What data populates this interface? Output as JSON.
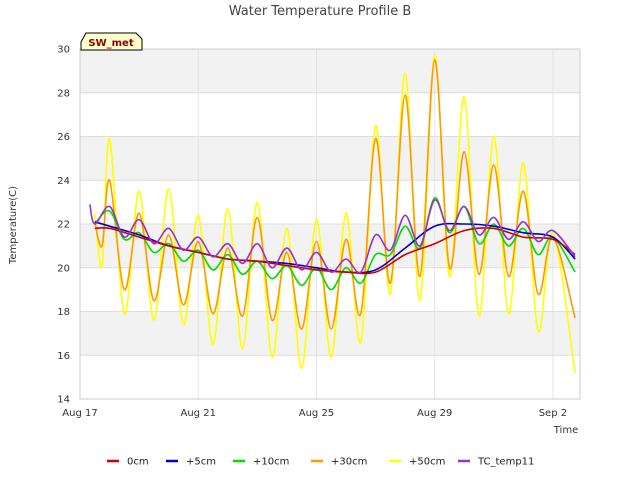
{
  "chart_data": {
    "type": "line",
    "title": "Water Temperature Profile B",
    "xlabel": "Time",
    "ylabel": "Temperature(C)",
    "ylim": [
      14,
      30
    ],
    "xlim": [
      "2023-08-17",
      "2023-09-02T22:00"
    ],
    "yticks": [
      14,
      16,
      18,
      20,
      22,
      24,
      26,
      28,
      30
    ],
    "xticks": [
      {
        "value": "2023-08-17",
        "label": "Aug 17"
      },
      {
        "value": "2023-08-21",
        "label": "Aug 21"
      },
      {
        "value": "2023-08-25",
        "label": "Aug 25"
      },
      {
        "value": "2023-08-29",
        "label": "Aug 29"
      },
      {
        "value": "2023-09-02",
        "label": "Sep 2"
      }
    ],
    "grid": true,
    "legend_position": "bottom",
    "badge": "SW_met",
    "series": [
      {
        "name": "0cm",
        "color": "#cc0000",
        "x": [
          "2023-08-17T12:00",
          "2023-08-18",
          "2023-08-19",
          "2023-08-20",
          "2023-08-21",
          "2023-08-22",
          "2023-08-23",
          "2023-08-24",
          "2023-08-25",
          "2023-08-26",
          "2023-08-27",
          "2023-08-28",
          "2023-08-29",
          "2023-08-30",
          "2023-08-31",
          "2023-09-01",
          "2023-09-02",
          "2023-09-02T18:00"
        ],
        "y": [
          21.8,
          21.8,
          21.4,
          21.0,
          20.7,
          20.4,
          20.3,
          20.1,
          19.9,
          19.8,
          19.8,
          20.6,
          21.1,
          21.7,
          21.8,
          21.4,
          21.3,
          20.6
        ]
      },
      {
        "name": "+5cm",
        "color": "#0000cc",
        "x": [
          "2023-08-17T12:00",
          "2023-08-18",
          "2023-08-19",
          "2023-08-20",
          "2023-08-21",
          "2023-08-22",
          "2023-08-23",
          "2023-08-24",
          "2023-08-25",
          "2023-08-26",
          "2023-08-27",
          "2023-08-28",
          "2023-08-29",
          "2023-08-30",
          "2023-08-31",
          "2023-09-01",
          "2023-09-02",
          "2023-09-02T18:00"
        ],
        "y": [
          22.1,
          21.9,
          21.5,
          21.0,
          20.7,
          20.4,
          20.3,
          20.2,
          20.0,
          19.8,
          19.9,
          20.9,
          21.9,
          22.0,
          21.9,
          21.6,
          21.4,
          20.4
        ]
      },
      {
        "name": "+10cm",
        "color": "#00dd00",
        "x": [
          "2023-08-17T12:00",
          "2023-08-18",
          "2023-08-18T12:00",
          "2023-08-19",
          "2023-08-19T12:00",
          "2023-08-20",
          "2023-08-20T12:00",
          "2023-08-21",
          "2023-08-21T12:00",
          "2023-08-22",
          "2023-08-22T12:00",
          "2023-08-23",
          "2023-08-23T12:00",
          "2023-08-24",
          "2023-08-24T12:00",
          "2023-08-25",
          "2023-08-25T12:00",
          "2023-08-26",
          "2023-08-26T12:00",
          "2023-08-27",
          "2023-08-27T12:00",
          "2023-08-28",
          "2023-08-28T12:00",
          "2023-08-29",
          "2023-08-29T12:00",
          "2023-08-30",
          "2023-08-30T12:00",
          "2023-08-31",
          "2023-08-31T12:00",
          "2023-09-01",
          "2023-09-01T12:00",
          "2023-09-02",
          "2023-09-02T18:00"
        ],
        "y": [
          22.0,
          22.6,
          21.3,
          21.6,
          20.7,
          21.1,
          20.3,
          20.8,
          19.9,
          20.6,
          19.7,
          20.3,
          19.5,
          20.1,
          19.2,
          20.0,
          19.0,
          20.0,
          19.3,
          20.6,
          20.6,
          21.9,
          20.9,
          23.2,
          21.6,
          22.8,
          21.1,
          22.0,
          21.0,
          21.8,
          20.6,
          21.4,
          19.8
        ]
      },
      {
        "name": "+30cm",
        "color": "#ff9900",
        "x": [
          "2023-08-17T12:00",
          "2023-08-17T18:00",
          "2023-08-18",
          "2023-08-18T12:00",
          "2023-08-19",
          "2023-08-19T12:00",
          "2023-08-20",
          "2023-08-20T12:00",
          "2023-08-21",
          "2023-08-21T12:00",
          "2023-08-22",
          "2023-08-22T12:00",
          "2023-08-23",
          "2023-08-23T12:00",
          "2023-08-24",
          "2023-08-24T12:00",
          "2023-08-25",
          "2023-08-25T12:00",
          "2023-08-26",
          "2023-08-26T12:00",
          "2023-08-27",
          "2023-08-27T12:00",
          "2023-08-28",
          "2023-08-28T12:00",
          "2023-08-29",
          "2023-08-29T12:00",
          "2023-08-30",
          "2023-08-30T12:00",
          "2023-08-31",
          "2023-08-31T12:00",
          "2023-09-01",
          "2023-09-01T12:00",
          "2023-09-02",
          "2023-09-02T18:00"
        ],
        "y": [
          22.1,
          21.0,
          24.0,
          19.0,
          22.5,
          18.5,
          21.5,
          18.3,
          21.2,
          17.9,
          20.9,
          17.8,
          22.3,
          17.6,
          20.7,
          17.2,
          21.2,
          17.2,
          21.3,
          17.9,
          25.9,
          19.3,
          27.9,
          19.6,
          29.5,
          20.0,
          25.3,
          19.7,
          24.7,
          19.6,
          23.5,
          18.8,
          21.4,
          17.7
        ]
      },
      {
        "name": "+50cm",
        "color": "#ffff00",
        "x": [
          "2023-08-17T12:00",
          "2023-08-17T18:00",
          "2023-08-18",
          "2023-08-18T12:00",
          "2023-08-19",
          "2023-08-19T12:00",
          "2023-08-20",
          "2023-08-20T12:00",
          "2023-08-21",
          "2023-08-21T12:00",
          "2023-08-22",
          "2023-08-22T12:00",
          "2023-08-23",
          "2023-08-23T12:00",
          "2023-08-24",
          "2023-08-24T12:00",
          "2023-08-25",
          "2023-08-25T12:00",
          "2023-08-26",
          "2023-08-26T12:00",
          "2023-08-27",
          "2023-08-27T12:00",
          "2023-08-28",
          "2023-08-28T12:00",
          "2023-08-29",
          "2023-08-29T12:00",
          "2023-08-30",
          "2023-08-30T12:00",
          "2023-08-31",
          "2023-08-31T12:00",
          "2023-09-01",
          "2023-09-01T12:00",
          "2023-09-02",
          "2023-09-02T18:00"
        ],
        "y": [
          22.5,
          20.1,
          25.9,
          17.9,
          23.5,
          17.6,
          23.6,
          17.4,
          22.4,
          16.5,
          22.7,
          16.3,
          23.0,
          15.9,
          21.8,
          15.4,
          22.2,
          15.9,
          22.5,
          16.6,
          26.5,
          18.8,
          28.9,
          18.5,
          29.7,
          19.6,
          27.8,
          17.8,
          26.0,
          17.9,
          24.8,
          17.1,
          21.6,
          15.2
        ]
      },
      {
        "name": "TC_temp11",
        "color": "#9933cc",
        "x": [
          "2023-08-17T08:00",
          "2023-08-17T12:00",
          "2023-08-18",
          "2023-08-18T12:00",
          "2023-08-19",
          "2023-08-19T12:00",
          "2023-08-20",
          "2023-08-20T12:00",
          "2023-08-21",
          "2023-08-21T12:00",
          "2023-08-22",
          "2023-08-22T12:00",
          "2023-08-23",
          "2023-08-23T12:00",
          "2023-08-24",
          "2023-08-24T12:00",
          "2023-08-25",
          "2023-08-25T12:00",
          "2023-08-26",
          "2023-08-26T12:00",
          "2023-08-27",
          "2023-08-27T12:00",
          "2023-08-28",
          "2023-08-28T12:00",
          "2023-08-29",
          "2023-08-29T12:00",
          "2023-08-30",
          "2023-08-30T12:00",
          "2023-08-31",
          "2023-08-31T12:00",
          "2023-09-01",
          "2023-09-01T12:00",
          "2023-09-02",
          "2023-09-02T18:00"
        ],
        "y": [
          22.9,
          22.0,
          22.8,
          21.4,
          22.2,
          21.1,
          21.8,
          20.8,
          21.4,
          20.5,
          21.1,
          20.2,
          21.1,
          20.0,
          20.9,
          19.9,
          20.7,
          19.8,
          20.4,
          19.8,
          21.5,
          20.8,
          22.4,
          21.0,
          23.1,
          21.7,
          22.8,
          21.5,
          22.3,
          21.3,
          22.1,
          21.2,
          21.7,
          20.5
        ]
      }
    ]
  }
}
